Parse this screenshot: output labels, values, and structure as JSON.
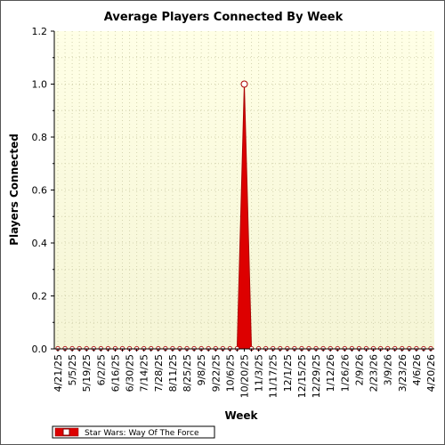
{
  "chart_data": {
    "type": "area",
    "title": "Average Players Connected By Week",
    "xlabel": "Week",
    "ylabel": "Players Connected",
    "ylim": [
      0,
      1.2
    ],
    "yticks": [
      "0.0",
      "0.2",
      "0.4",
      "0.6",
      "0.8",
      "1.0",
      "1.2"
    ],
    "x_tick_labels": [
      "4/21/25",
      "5/5/25",
      "5/19/25",
      "6/2/25",
      "6/16/25",
      "6/30/25",
      "7/14/25",
      "7/28/25",
      "8/11/25",
      "8/25/25",
      "9/8/25",
      "9/22/25",
      "10/6/25",
      "10/20/25",
      "11/3/25",
      "11/17/25",
      "12/1/25",
      "12/15/25",
      "12/29/25",
      "1/12/26",
      "1/26/26",
      "2/9/26",
      "2/23/26",
      "3/9/26",
      "3/23/26",
      "4/6/26",
      "4/20/26"
    ],
    "x": [
      "4/21/25",
      "4/28/25",
      "5/5/25",
      "5/12/25",
      "5/19/25",
      "5/26/25",
      "6/2/25",
      "6/9/25",
      "6/16/25",
      "6/23/25",
      "6/30/25",
      "7/7/25",
      "7/14/25",
      "7/21/25",
      "7/28/25",
      "8/4/25",
      "8/11/25",
      "8/18/25",
      "8/25/25",
      "9/1/25",
      "9/8/25",
      "9/15/25",
      "9/22/25",
      "9/29/25",
      "10/6/25",
      "10/13/25",
      "10/20/25",
      "10/27/25",
      "11/3/25",
      "11/10/25",
      "11/17/25",
      "11/24/25",
      "12/1/25",
      "12/8/25",
      "12/15/25",
      "12/22/25",
      "12/29/25",
      "1/5/26",
      "1/12/26",
      "1/19/26",
      "1/26/26",
      "2/2/26",
      "2/9/26",
      "2/16/26",
      "2/23/26",
      "3/2/26",
      "3/9/26",
      "3/16/26",
      "3/23/26",
      "3/30/26",
      "4/6/26",
      "4/13/26",
      "4/20/26"
    ],
    "series": [
      {
        "name": "Star Wars: Way Of The Force",
        "color": "#dd0000",
        "values": [
          0,
          0,
          0,
          0,
          0,
          0,
          0,
          0,
          0,
          0,
          0,
          0,
          0,
          0,
          0,
          0,
          0,
          0,
          0,
          0,
          0,
          0,
          0,
          0,
          0,
          0,
          1.0,
          0,
          0,
          0,
          0,
          0,
          0,
          0,
          0,
          0,
          0,
          0,
          0,
          0,
          0,
          0,
          0,
          0,
          0,
          0,
          0,
          0,
          0,
          0,
          0,
          0,
          0
        ]
      }
    ],
    "grid": true,
    "legend_position": "bottom-left",
    "colors": {
      "plot_bg_top": "#ffffe4",
      "plot_bg_bottom": "#f6f6d2",
      "series": "#dd0000",
      "marker_fill": "#ffffff"
    }
  }
}
